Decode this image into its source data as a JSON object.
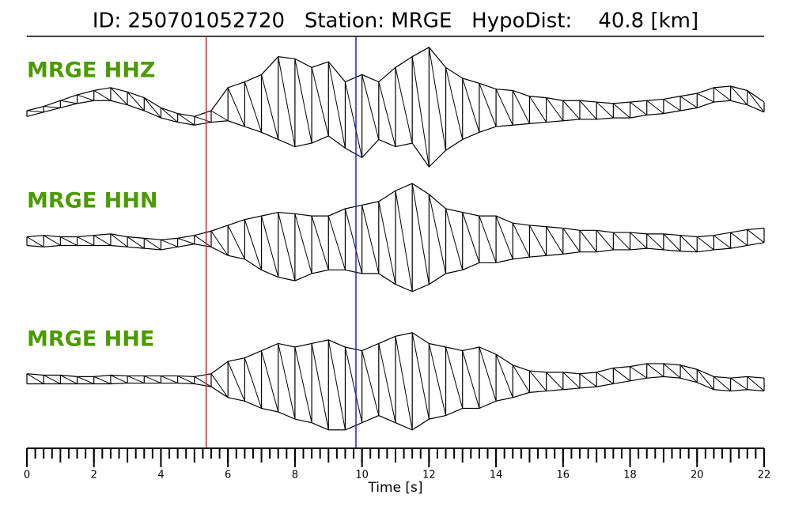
{
  "chart_data": {
    "type": "seismogram",
    "title": "ID: 250701052720   Station: MRGE   HypoDist:    40.8 [km]",
    "xlabel": "Time [s]",
    "xlim": [
      0,
      22
    ],
    "ylim": [
      -90,
      90
    ],
    "xticks": [
      0,
      2,
      4,
      6,
      8,
      10,
      12,
      14,
      16,
      18,
      20,
      22
    ],
    "xticks_minor": [
      0,
      0.25,
      0.5,
      0.75,
      1,
      1.25,
      1.5,
      1.75,
      2,
      2.25,
      2.5,
      2.75,
      3,
      3.25,
      3.5,
      3.75,
      4,
      4.25,
      4.5,
      4.75,
      5,
      5.25,
      5.5,
      5.75,
      6,
      6.25,
      6.5,
      6.75,
      7,
      7.25,
      7.5,
      7.75,
      8,
      8.25,
      8.5,
      8.75,
      9,
      9.25,
      9.5,
      9.75,
      10,
      10.25,
      10.5,
      10.75,
      11,
      11.25,
      11.5,
      11.75,
      12,
      12.25,
      12.5,
      12.75,
      13,
      13.25,
      13.5,
      13.75,
      14,
      14.25,
      14.5,
      14.75,
      15,
      15.25,
      15.5,
      15.75,
      16,
      16.25,
      16.5,
      16.75,
      17,
      17.25,
      17.5,
      17.75,
      18,
      18.25,
      18.5,
      18.75,
      19,
      19.25,
      19.5,
      19.75,
      20,
      20.25,
      20.5,
      20.75,
      21,
      21.25,
      21.5,
      21.75,
      22
    ],
    "picks": [
      {
        "time": 5.35,
        "color": "#e41a1c"
      },
      {
        "time": 9.82,
        "color": "#1f1fcc"
      }
    ],
    "label_color": "#4c9a00",
    "trace_color": "#000000",
    "x": [
      0,
      0.5,
      1,
      1.5,
      2,
      2.5,
      3,
      3.5,
      4,
      4.5,
      5,
      5.5,
      6,
      6.5,
      7,
      7.5,
      8,
      8.5,
      9,
      9.5,
      10,
      10.5,
      11,
      11.5,
      12,
      12.5,
      13,
      13.5,
      14,
      14.5,
      15,
      15.5,
      16,
      16.5,
      17,
      17.5,
      18,
      18.5,
      19,
      19.5,
      20,
      20.5,
      21,
      21.5,
      22
    ],
    "series": [
      {
        "name": "MRGE HHZ",
        "low": [
          -8,
          -2,
          4,
          10,
          14,
          14,
          8,
          0,
          -10,
          -16,
          -20,
          -16,
          -14,
          -22,
          -30,
          -40,
          -50,
          -45,
          -35,
          -52,
          -65,
          -40,
          -50,
          -45,
          -78,
          -55,
          -40,
          -30,
          -22,
          -20,
          -18,
          -16,
          -14,
          -12,
          -12,
          -10,
          -10,
          -6,
          -4,
          0,
          4,
          12,
          14,
          8,
          -2
        ],
        "high": [
          0,
          6,
          14,
          22,
          28,
          32,
          26,
          18,
          4,
          -4,
          -8,
          0,
          32,
          40,
          50,
          75,
          72,
          60,
          68,
          40,
          50,
          40,
          60,
          75,
          88,
          60,
          45,
          38,
          30,
          28,
          20,
          18,
          14,
          14,
          12,
          10,
          12,
          14,
          16,
          20,
          24,
          32,
          34,
          28,
          12
        ]
      },
      {
        "name": "MRGE HHN",
        "low": [
          -6,
          -8,
          -6,
          -6,
          -6,
          -6,
          -8,
          -10,
          -12,
          -8,
          -4,
          -8,
          -20,
          -25,
          -40,
          -50,
          -55,
          -45,
          -40,
          -40,
          -45,
          -45,
          -60,
          -70,
          -60,
          -45,
          -40,
          -30,
          -30,
          -25,
          -22,
          -20,
          -18,
          -15,
          -15,
          -12,
          -12,
          -10,
          -12,
          -14,
          -15,
          -12,
          -10,
          -6,
          -2
        ],
        "high": [
          6,
          8,
          6,
          6,
          8,
          10,
          6,
          4,
          2,
          4,
          8,
          14,
          22,
          30,
          35,
          40,
          38,
          35,
          35,
          45,
          50,
          55,
          70,
          80,
          65,
          45,
          40,
          35,
          35,
          25,
          22,
          20,
          18,
          15,
          15,
          12,
          12,
          10,
          10,
          8,
          6,
          8,
          12,
          16,
          18
        ]
      },
      {
        "name": "MRGE HHE",
        "low": [
          -6,
          -6,
          -6,
          -6,
          -6,
          -6,
          -5,
          -5,
          -5,
          -5,
          -6,
          -10,
          -25,
          -30,
          -40,
          -45,
          -55,
          -60,
          -70,
          -70,
          -60,
          -50,
          -60,
          -70,
          -55,
          -50,
          -40,
          -40,
          -30,
          -25,
          -18,
          -16,
          -14,
          -12,
          -10,
          -6,
          -2,
          2,
          4,
          2,
          -4,
          -14,
          -16,
          -14,
          -16
        ],
        "high": [
          8,
          6,
          6,
          4,
          4,
          6,
          5,
          5,
          5,
          5,
          4,
          8,
          25,
          30,
          40,
          50,
          45,
          50,
          55,
          45,
          40,
          50,
          60,
          65,
          50,
          45,
          40,
          45,
          35,
          20,
          12,
          10,
          10,
          8,
          10,
          16,
          18,
          22,
          22,
          20,
          14,
          4,
          2,
          4,
          2
        ]
      }
    ]
  }
}
